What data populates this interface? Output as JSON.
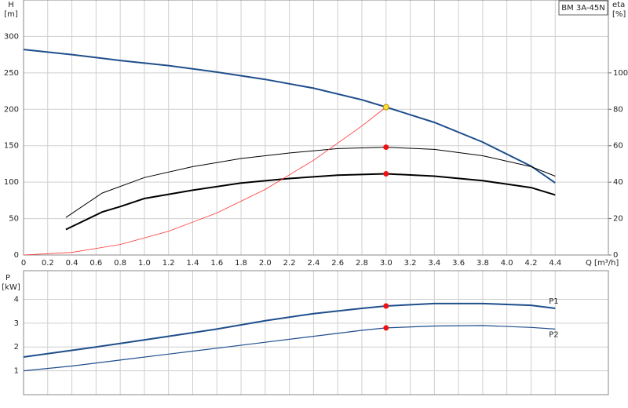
{
  "chart_data": [
    {
      "type": "line",
      "title": "BM 3A-45N",
      "x_label": "Q [m³/h]",
      "y_label": "H",
      "y_unit": "[m]",
      "y2_label": "eta",
      "y2_unit": "[%]",
      "xlim": [
        0,
        4.84
      ],
      "ylim": [
        0,
        350
      ],
      "y2lim": [
        0,
        140
      ],
      "grid": true,
      "xticks": [
        0,
        0.2,
        0.4,
        0.6,
        0.8,
        {
          "value": 1,
          "label": "1.0"
        },
        1.2,
        1.4,
        1.6,
        1.8,
        {
          "value": 2,
          "label": "2.0"
        },
        2.2,
        2.4,
        2.6,
        2.8,
        {
          "value": 3,
          "label": "3.0"
        },
        3.2,
        3.4,
        3.6,
        3.8,
        {
          "value": 4,
          "label": "4.0"
        },
        4.2,
        4.4
      ],
      "yticks": [
        0,
        50,
        100,
        150,
        200,
        250,
        300
      ],
      "y2ticks": [
        0,
        20,
        40,
        60,
        80,
        100
      ],
      "series": [
        {
          "color": "#1f4e8c",
          "width": 2,
          "x": [
            0,
            0.4,
            0.8,
            1.2,
            1.6,
            2.0,
            2.4,
            2.8,
            3.0,
            3.4,
            3.8,
            4.2,
            4.4
          ],
          "values": [
            282,
            275,
            267,
            260,
            251,
            241,
            229,
            213,
            203,
            182,
            155,
            122,
            99
          ]
        },
        {
          "color": "#000000",
          "width": 1,
          "axis": "y2",
          "x": [
            0.35,
            0.65,
            1.0,
            1.4,
            1.8,
            2.2,
            2.6,
            3.0,
            3.4,
            3.8,
            4.2,
            4.4
          ],
          "values": [
            20.6,
            34,
            42.5,
            48.5,
            53,
            56,
            58.4,
            59.2,
            58,
            54.5,
            48.5,
            43.3
          ]
        },
        {
          "color": "#000000",
          "width": 2,
          "axis": "y2",
          "x": [
            0.35,
            0.65,
            0.8,
            1.0,
            1.4,
            1.8,
            2.2,
            2.6,
            3.0,
            3.4,
            3.8,
            4.2,
            4.4
          ],
          "values": [
            14,
            23.6,
            26.6,
            31,
            35.6,
            39.5,
            42,
            43.8,
            44.6,
            43.3,
            40.8,
            37,
            33
          ]
        },
        {
          "color": "#ff3333",
          "width": 0.8,
          "x": [
            0,
            0.4,
            0.8,
            1.2,
            1.6,
            2.0,
            2.4,
            2.8,
            3.0
          ],
          "values": [
            0,
            3.6,
            14.4,
            32.5,
            57.7,
            90,
            130,
            177,
            203
          ]
        }
      ],
      "markers": [
        {
          "x": 3.0,
          "y": 203,
          "color": "#ffe033"
        },
        {
          "x": 3.0,
          "y": 59.2,
          "axis": "y2",
          "color": "#ee1111"
        },
        {
          "x": 3.0,
          "y": 44.6,
          "axis": "y2",
          "color": "#ee1111"
        }
      ]
    },
    {
      "type": "line",
      "y_label": "P",
      "y_unit": "[kW]",
      "xlim": [
        0,
        4.84
      ],
      "ylim": [
        0,
        5.2
      ],
      "yticks": [
        1,
        2,
        3,
        4
      ],
      "grid": true,
      "series": [
        {
          "name": "P1",
          "color": "#1f4e8c",
          "width": 2,
          "x": [
            0,
            0.6,
            0.8,
            1.2,
            1.6,
            2.0,
            2.4,
            2.8,
            3.0,
            3.4,
            3.8,
            4.2,
            4.4
          ],
          "values": [
            1.58,
            2.0,
            2.15,
            2.45,
            2.75,
            3.1,
            3.4,
            3.62,
            3.72,
            3.82,
            3.82,
            3.75,
            3.62
          ]
        },
        {
          "name": "P2",
          "color": "#1f4e8c",
          "width": 1.2,
          "x": [
            0,
            0.4,
            0.8,
            1.2,
            1.6,
            2.0,
            2.4,
            2.8,
            3.0,
            3.4,
            3.8,
            4.2,
            4.4
          ],
          "values": [
            1.0,
            1.2,
            1.45,
            1.7,
            1.95,
            2.2,
            2.45,
            2.7,
            2.8,
            2.88,
            2.9,
            2.82,
            2.75
          ]
        }
      ],
      "markers": [
        {
          "x": 3.0,
          "y": 3.72,
          "color": "#ee1111"
        },
        {
          "x": 3.0,
          "y": 2.8,
          "color": "#ee1111"
        }
      ]
    }
  ]
}
